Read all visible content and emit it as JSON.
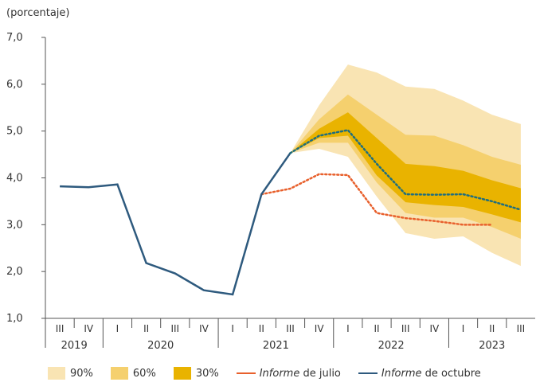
{
  "chart_data": {
    "type": "fan",
    "y_label": "(porcentaje)",
    "categories": [
      "III",
      "IV",
      "I",
      "II",
      "III",
      "IV",
      "I",
      "II",
      "III",
      "IV",
      "I",
      "II",
      "III",
      "IV",
      "I",
      "II",
      "III"
    ],
    "category_years": [
      "2019",
      "2019",
      "2020",
      "2020",
      "2020",
      "2020",
      "2021",
      "2021",
      "2021",
      "2021",
      "2022",
      "2022",
      "2022",
      "2022",
      "2023",
      "2023",
      "2023"
    ],
    "ylim": [
      1,
      7
    ],
    "yticks": [
      {
        "value": 1,
        "label": "1,0"
      },
      {
        "value": 2,
        "label": "2,0"
      },
      {
        "value": 3,
        "label": "3,0"
      },
      {
        "value": 4,
        "label": "4,0"
      },
      {
        "value": 5,
        "label": "5,0"
      },
      {
        "value": 6,
        "label": "6,0"
      },
      {
        "value": 7,
        "label": "7,0"
      }
    ],
    "bands": [
      {
        "name": "90%",
        "color": "#f9e4b3",
        "lower": [
          null,
          null,
          null,
          null,
          null,
          null,
          null,
          null,
          4.53,
          4.62,
          4.45,
          3.6,
          2.82,
          2.7,
          2.75,
          2.4,
          2.12
        ],
        "upper": [
          null,
          null,
          null,
          null,
          null,
          null,
          null,
          null,
          4.53,
          5.55,
          6.42,
          6.25,
          5.95,
          5.9,
          5.65,
          5.35,
          5.15
        ]
      },
      {
        "name": "60%",
        "color": "#f5d06e",
        "lower": [
          null,
          null,
          null,
          null,
          null,
          null,
          null,
          null,
          4.53,
          4.75,
          4.75,
          3.9,
          3.25,
          3.15,
          3.15,
          2.95,
          2.7
        ],
        "upper": [
          null,
          null,
          null,
          null,
          null,
          null,
          null,
          null,
          4.53,
          5.25,
          5.78,
          5.35,
          4.92,
          4.9,
          4.7,
          4.45,
          4.28
        ]
      },
      {
        "name": "30%",
        "color": "#e9b300",
        "lower": [
          null,
          null,
          null,
          null,
          null,
          null,
          null,
          null,
          4.53,
          4.85,
          4.9,
          4.05,
          3.48,
          3.42,
          3.38,
          3.22,
          3.05
        ],
        "upper": [
          null,
          null,
          null,
          null,
          null,
          null,
          null,
          null,
          4.53,
          5.05,
          5.4,
          4.85,
          4.3,
          4.25,
          4.15,
          3.95,
          3.78
        ]
      }
    ],
    "series": [
      {
        "name": [
          "Informe",
          " de julio"
        ],
        "color": "#e8602c",
        "dashed": true,
        "values": [
          null,
          null,
          null,
          null,
          null,
          null,
          null,
          3.65,
          3.77,
          4.08,
          4.06,
          3.25,
          3.14,
          3.08,
          3.0,
          3.0,
          null
        ]
      },
      {
        "name": [
          "Informe",
          " de octubre"
        ],
        "color": "#2e5a7e",
        "forecast_color": "#1f6e7e",
        "forecast_from": 8,
        "values": [
          3.82,
          3.8,
          3.86,
          2.18,
          1.96,
          1.6,
          1.51,
          3.65,
          4.53,
          4.9,
          5.02,
          4.3,
          3.65,
          3.64,
          3.65,
          3.5,
          3.32
        ]
      }
    ]
  }
}
